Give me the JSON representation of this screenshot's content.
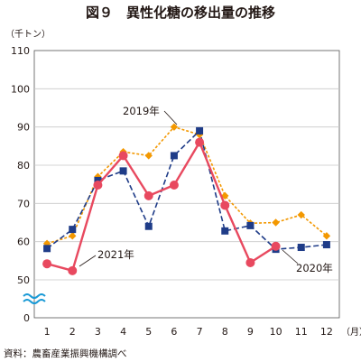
{
  "chart_data": {
    "type": "line",
    "title": "図９　異性化糖の移出量の推移",
    "y_unit": "（千トン）",
    "x_unit": "（月）",
    "source": "資料：農畜産業振興機構調べ",
    "categories": [
      "1",
      "2",
      "3",
      "4",
      "5",
      "6",
      "7",
      "8",
      "9",
      "10",
      "11",
      "12"
    ],
    "ylim": [
      50,
      110
    ],
    "yticks": [
      110,
      100,
      90,
      80,
      70,
      60,
      50
    ],
    "ybase_label": "0",
    "axis_break": true,
    "grid": true,
    "series": [
      {
        "name": "2019年",
        "color": "#f39800",
        "marker": "diamond",
        "line": "dotted",
        "values": [
          59.5,
          61.5,
          77.0,
          83.5,
          82.5,
          90.0,
          88.0,
          72.0,
          64.8,
          65.0,
          67.0,
          61.5
        ]
      },
      {
        "name": "2020年",
        "color": "#1f3c88",
        "marker": "square",
        "line": "dashed",
        "values": [
          58.2,
          63.2,
          76.0,
          78.5,
          64.0,
          82.5,
          89.0,
          62.8,
          64.2,
          58.0,
          58.5,
          59.2
        ]
      },
      {
        "name": "2021年",
        "color": "#e8495f",
        "marker": "circle",
        "line": "solid",
        "values": [
          54.2,
          52.4,
          74.8,
          82.5,
          72.0,
          74.8,
          86.0,
          69.5,
          54.5,
          58.8,
          null,
          null
        ]
      }
    ]
  }
}
